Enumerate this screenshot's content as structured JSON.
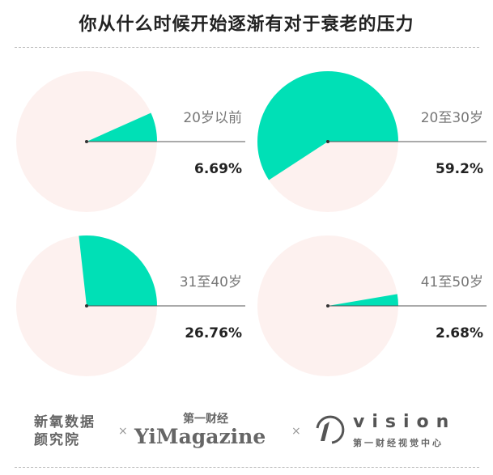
{
  "title": "你从什么时候开始逐渐有对于衰老的压力",
  "chart_data": [
    {
      "type": "pie",
      "category": "20岁以前",
      "value": 6.69,
      "value_label": "6.69%"
    },
    {
      "type": "pie",
      "category": "20至30岁",
      "value": 59.2,
      "value_label": "59.2%"
    },
    {
      "type": "pie",
      "category": "31至40岁",
      "value": 26.76,
      "value_label": "26.76%"
    },
    {
      "type": "pie",
      "category": "41至50岁",
      "value": 2.68,
      "value_label": "2.68%"
    }
  ],
  "colors": {
    "slice": "#00e0b6",
    "background": "#fdf1ef",
    "line": "#555555"
  },
  "footer": {
    "brand1_line1": "新氧数据",
    "brand1_line2": "颜究院",
    "brand2_top": "第一财经",
    "brand2": "YiMagazine",
    "brand3": "vision",
    "brand3_sub": "第一财经视觉中心",
    "separator": "×"
  }
}
